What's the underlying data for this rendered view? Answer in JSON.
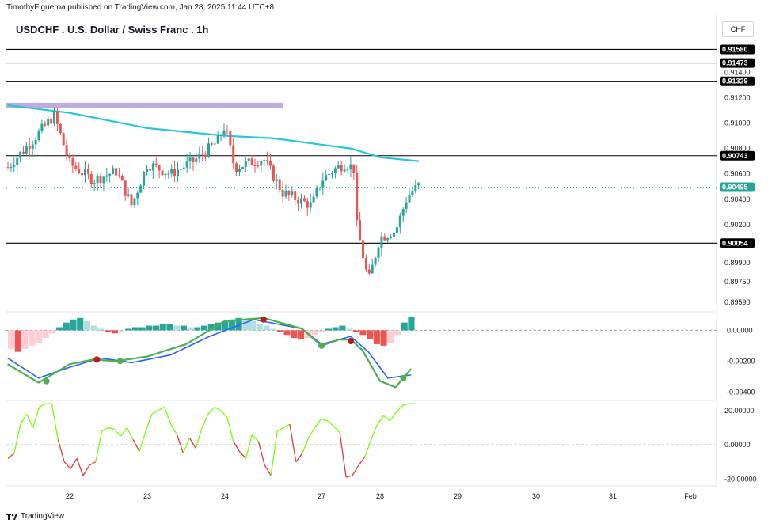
{
  "header": {
    "publisher_line": "TimothyFigueroa published on TradingView.com, Jan 28, 2025 11:44 UTC+8",
    "symbol_title": "USDCHF . U.S. Dollar / Swiss Franc . 1h",
    "currency": "CHF"
  },
  "footer": {
    "brand": "TradingView",
    "logo_icon": "tradingview-logo-icon"
  },
  "colors": {
    "up": "#26a69a",
    "down": "#ef5350",
    "ma": "#26c6da",
    "zone": "#b39ddb",
    "osc_fast": "#4caf50",
    "osc_slow": "#2962ff",
    "osc_bear": "#b71c1c",
    "rsi_up": "#76ff03",
    "rsi_down": "#e53935",
    "badge": "#000000",
    "current_badge": "#26a69a"
  },
  "chart_data": [
    {
      "type": "candlestick",
      "title": "USDCHF . U.S. Dollar / Swiss Franc . 1h",
      "y_range": [
        0.8952,
        0.9167
      ],
      "x_ticks": [
        "22",
        "23",
        "24",
        "27",
        "28",
        "29",
        "30",
        "31",
        "Feb"
      ],
      "y_ticks": [
        "0.91400",
        "0.91200",
        "0.91000",
        "0.90800",
        "0.90600",
        "0.90400",
        "0.90200",
        "0.89900",
        "0.89750",
        "0.89590"
      ],
      "horizontal_levels": [
        0.9158,
        0.91473,
        0.91329,
        0.90743,
        0.90054
      ],
      "level_labels": [
        "0.91580",
        "0.91473",
        "0.91329",
        "0.90743",
        "0.90054"
      ],
      "last_price": 0.90495,
      "last_price_label": "0.90495",
      "zone": {
        "y_top": 0.9116,
        "y_bottom": 0.9112,
        "x_start": "21",
        "x_end": "24.6"
      },
      "ma_line": [
        [
          "21.2",
          0.9114
        ],
        [
          "22",
          0.9108
        ],
        [
          "22.5",
          0.9102
        ],
        [
          "23",
          0.9096
        ],
        [
          "23.5",
          0.9093
        ],
        [
          "24",
          0.909
        ],
        [
          "24.5",
          0.9088
        ],
        [
          "27",
          0.9083
        ],
        [
          "27.5",
          0.908
        ],
        [
          "28",
          0.9073
        ],
        [
          "28.5",
          0.907
        ]
      ],
      "price_path": [
        [
          "21.2",
          0.9065
        ],
        [
          "21.5",
          0.9085
        ],
        [
          "21.8",
          0.9106
        ],
        [
          "22",
          0.9068
        ],
        [
          "22.3",
          0.9055
        ],
        [
          "22.6",
          0.9062
        ],
        [
          "22.8",
          0.9035
        ],
        [
          "23",
          0.9068
        ],
        [
          "23.3",
          0.906
        ],
        [
          "23.6",
          0.907
        ],
        [
          "23.9",
          0.9085
        ],
        [
          "24",
          0.9098
        ],
        [
          "24.1",
          0.9065
        ],
        [
          "24.4",
          0.9072
        ],
        [
          "24.6",
          0.9045
        ],
        [
          "24.9",
          0.9035
        ],
        [
          "27",
          0.9055
        ],
        [
          "27.2",
          0.9063
        ],
        [
          "27.4",
          0.9068
        ],
        [
          "27.55",
          0.9065
        ],
        [
          "27.6",
          0.902
        ],
        [
          "27.8",
          0.8975
        ],
        [
          "28",
          0.901
        ],
        [
          "28.2",
          0.9015
        ],
        [
          "28.35",
          0.9042
        ],
        [
          "28.5",
          0.9051
        ]
      ]
    },
    {
      "type": "histogram+line",
      "y_ticks": [
        "0.00000",
        "-0.00200",
        "-0.00400"
      ],
      "y_range": [
        -0.0045,
        0.0011
      ],
      "fast_line": [
        [
          "21.2",
          -0.0022
        ],
        [
          "21.6",
          -0.0034
        ],
        [
          "22",
          -0.0022
        ],
        [
          "22.3",
          -0.0019
        ],
        [
          "22.6",
          -0.002
        ],
        [
          "23",
          -0.0017
        ],
        [
          "23.5",
          -0.0009
        ],
        [
          "24",
          0.0006
        ],
        [
          "24.4",
          0.0008
        ],
        [
          "24.8",
          0.0001
        ],
        [
          "27",
          -0.001
        ],
        [
          "27.3",
          -0.0006
        ],
        [
          "27.5",
          -0.0006
        ],
        [
          "27.7",
          -0.0013
        ],
        [
          "28",
          -0.0033
        ],
        [
          "28.2",
          -0.0037
        ],
        [
          "28.4",
          -0.0025
        ]
      ],
      "slow_line": [
        [
          "21.2",
          -0.0018
        ],
        [
          "21.6",
          -0.0031
        ],
        [
          "22",
          -0.0024
        ],
        [
          "22.4",
          -0.0018
        ],
        [
          "22.8",
          -0.0021
        ],
        [
          "23.3",
          -0.0016
        ],
        [
          "23.8",
          -0.0004
        ],
        [
          "24.3",
          0.0007
        ],
        [
          "24.8",
          0.0001
        ],
        [
          "27",
          -0.0009
        ],
        [
          "27.5",
          -0.0004
        ],
        [
          "27.8",
          -0.0014
        ],
        [
          "28.1",
          -0.0031
        ],
        [
          "28.4",
          -0.0029
        ]
      ],
      "cross_markers": [
        {
          "x": "21.7",
          "y": -0.0033,
          "kind": "bull"
        },
        {
          "x": "22.35",
          "y": -0.0019,
          "kind": "bear"
        },
        {
          "x": "22.65",
          "y": -0.002,
          "kind": "bull"
        },
        {
          "x": "24.4",
          "y": 0.0007,
          "kind": "bear"
        },
        {
          "x": "27",
          "y": -0.001,
          "kind": "bull"
        },
        {
          "x": "27.5",
          "y": -0.0007,
          "kind": "bear"
        },
        {
          "x": "28.3",
          "y": -0.0031,
          "kind": "bull"
        }
      ],
      "histogram_values": [
        -0.0012,
        -0.0014,
        -0.0012,
        -0.001,
        -0.0008,
        -0.0005,
        -0.0002,
        0.0002,
        0.0005,
        0.0007,
        0.0008,
        0.0006,
        0.0003,
        0.0001,
        -0.0001,
        -0.0002,
        -0.0001,
        0.0001,
        0.0002,
        0.0002,
        0.0003,
        0.0003,
        0.0004,
        0.0004,
        0.0003,
        0.0003,
        0.0002,
        0.0002,
        0.0003,
        0.0004,
        0.0005,
        0.0006,
        0.0007,
        0.0008,
        0.0007,
        0.0006,
        0.0004,
        0.0003,
        0.0001,
        -0.0001,
        -0.0003,
        -0.0005,
        -0.0006,
        -0.0005,
        -0.0003,
        -0.0001,
        0.0001,
        0.0002,
        0.0003,
        0.0001,
        -0.0001,
        -0.0003,
        -0.0006,
        -0.0009,
        -0.001,
        -0.0008,
        -0.0003,
        0.0005,
        0.0009
      ]
    },
    {
      "type": "line",
      "y_ticks": [
        "20.00000",
        "0.00000",
        "-20.00000"
      ],
      "y_range": [
        -24,
        25
      ],
      "series": [
        {
          "values": [
            -8,
            -5,
            12,
            18,
            10,
            22,
            24,
            24,
            3,
            -10,
            -14,
            -8,
            -18,
            -12,
            -10,
            8,
            10,
            9,
            5,
            10,
            3,
            -4,
            8,
            18,
            20,
            22,
            12,
            6,
            -5,
            4,
            -2,
            10,
            18,
            22,
            20,
            16,
            2,
            -4,
            -8,
            6,
            2,
            -12,
            -18,
            8,
            10,
            12,
            -10,
            -5,
            4,
            10,
            15,
            14,
            11,
            7,
            -19,
            -18,
            -12,
            -7,
            3,
            12,
            17,
            14,
            19,
            23,
            24,
            24
          ]
        }
      ]
    }
  ]
}
